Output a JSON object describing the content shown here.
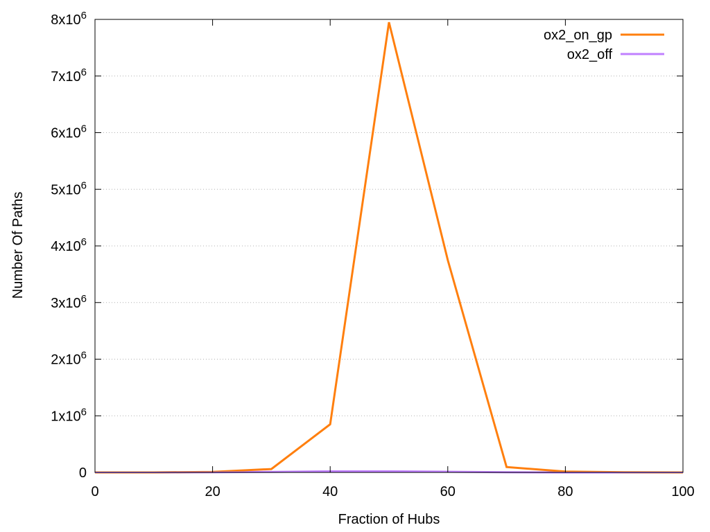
{
  "chart_data": {
    "type": "line",
    "xlabel": "Fraction of Hubs",
    "ylabel": "Number Of Paths",
    "xlim": [
      0,
      100
    ],
    "ylim": [
      0,
      8000000
    ],
    "xticks": [
      0,
      20,
      40,
      60,
      80,
      100
    ],
    "xtick_labels": [
      "0",
      "20",
      "40",
      "60",
      "80",
      "100"
    ],
    "yticks": [
      0,
      1000000,
      2000000,
      3000000,
      4000000,
      5000000,
      6000000,
      7000000,
      8000000
    ],
    "ytick_labels": [
      {
        "base": "0",
        "exp": ""
      },
      {
        "base": "1x10",
        "exp": "6"
      },
      {
        "base": "2x10",
        "exp": "6"
      },
      {
        "base": "3x10",
        "exp": "6"
      },
      {
        "base": "4x10",
        "exp": "6"
      },
      {
        "base": "5x10",
        "exp": "6"
      },
      {
        "base": "6x10",
        "exp": "6"
      },
      {
        "base": "7x10",
        "exp": "6"
      },
      {
        "base": "8x10",
        "exp": "6"
      }
    ],
    "grid": "horizontal-dotted",
    "legend_position": "top-right",
    "series": [
      {
        "name": "ox2_on_gp",
        "color": "#ff7f0e",
        "x": [
          0,
          10,
          20,
          30,
          40,
          50,
          60,
          70,
          80,
          90,
          100
        ],
        "y": [
          0,
          0,
          10000,
          60000,
          850000,
          7950000,
          3750000,
          95000,
          15000,
          2000,
          0
        ]
      },
      {
        "name": "ox2_off",
        "color": "#c080ff",
        "x": [
          0,
          10,
          20,
          30,
          40,
          50,
          60,
          70,
          80,
          90,
          100
        ],
        "y": [
          0,
          0,
          2000,
          10000,
          20000,
          20000,
          12000,
          3000,
          500,
          0,
          0
        ]
      }
    ]
  }
}
